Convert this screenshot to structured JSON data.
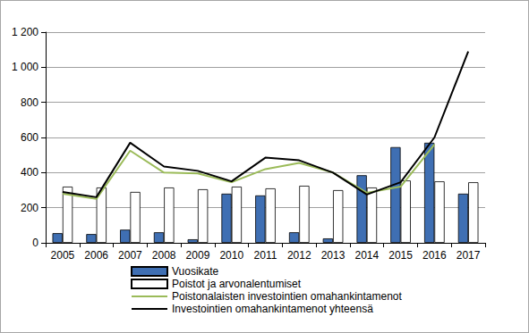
{
  "chart_data": {
    "type": "bar",
    "categories": [
      "2005",
      "2006",
      "2007",
      "2008",
      "2009",
      "2010",
      "2011",
      "2012",
      "2013",
      "2014",
      "2015",
      "2016",
      "2017"
    ],
    "series": [
      {
        "name": "Vuosikate",
        "type": "bar",
        "color": "#3f6fb3",
        "values": [
          55,
          50,
          75,
          60,
          20,
          280,
          270,
          60,
          25,
          385,
          545,
          570,
          280
        ]
      },
      {
        "name": "Poistot ja arvonalentumiset",
        "type": "bar",
        "color": "#ffffff",
        "values": [
          320,
          315,
          290,
          315,
          305,
          320,
          310,
          325,
          300,
          315,
          355,
          350,
          345
        ]
      },
      {
        "name": "Poistonalaisten investointien omahankintamenot",
        "type": "line",
        "color": "#9bbb59",
        "values": [
          280,
          250,
          525,
          400,
          395,
          345,
          420,
          455,
          400,
          285,
          320,
          560,
          null
        ]
      },
      {
        "name": "Investointien omahankintamenot yhteensä",
        "type": "line",
        "color": "#000000",
        "values": [
          290,
          260,
          570,
          435,
          410,
          350,
          485,
          470,
          400,
          275,
          345,
          600,
          1090
        ]
      }
    ],
    "ylim": [
      0,
      1200
    ],
    "yticks": [
      0,
      200,
      400,
      600,
      800,
      {
        "value": 1000,
        "label": "1 000"
      },
      {
        "value": 1200,
        "label": "1 200"
      }
    ],
    "grid": true,
    "legend": "bottom"
  }
}
